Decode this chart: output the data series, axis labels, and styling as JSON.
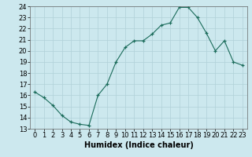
{
  "x": [
    0,
    1,
    2,
    3,
    4,
    5,
    6,
    7,
    8,
    9,
    10,
    11,
    12,
    13,
    14,
    15,
    16,
    17,
    18,
    19,
    20,
    21,
    22,
    23
  ],
  "y": [
    16.3,
    15.8,
    15.1,
    14.2,
    13.6,
    13.4,
    13.3,
    16.0,
    17.0,
    19.0,
    20.3,
    20.9,
    20.9,
    21.5,
    22.3,
    22.5,
    23.9,
    23.9,
    23.0,
    21.6,
    20.0,
    20.9,
    19.0,
    18.7
  ],
  "xlabel": "Humidex (Indice chaleur)",
  "ylim": [
    13,
    24
  ],
  "xlim": [
    -0.5,
    23.5
  ],
  "yticks": [
    13,
    14,
    15,
    16,
    17,
    18,
    19,
    20,
    21,
    22,
    23,
    24
  ],
  "xticks": [
    0,
    1,
    2,
    3,
    4,
    5,
    6,
    7,
    8,
    9,
    10,
    11,
    12,
    13,
    14,
    15,
    16,
    17,
    18,
    19,
    20,
    21,
    22,
    23
  ],
  "xtick_labels": [
    "0",
    "1",
    "2",
    "3",
    "4",
    "5",
    "6",
    "7",
    "8",
    "9",
    "10",
    "11",
    "12",
    "13",
    "14",
    "15",
    "16",
    "17",
    "18",
    "19",
    "20",
    "21",
    "22",
    "23"
  ],
  "line_color": "#1a6b5a",
  "marker_color": "#1a6b5a",
  "bg_color": "#cce8ee",
  "grid_color": "#b0d0d8",
  "xlabel_fontsize": 7,
  "tick_fontsize": 6,
  "xlabel_bold": true,
  "fig_width": 3.2,
  "fig_height": 2.0,
  "dpi": 100
}
